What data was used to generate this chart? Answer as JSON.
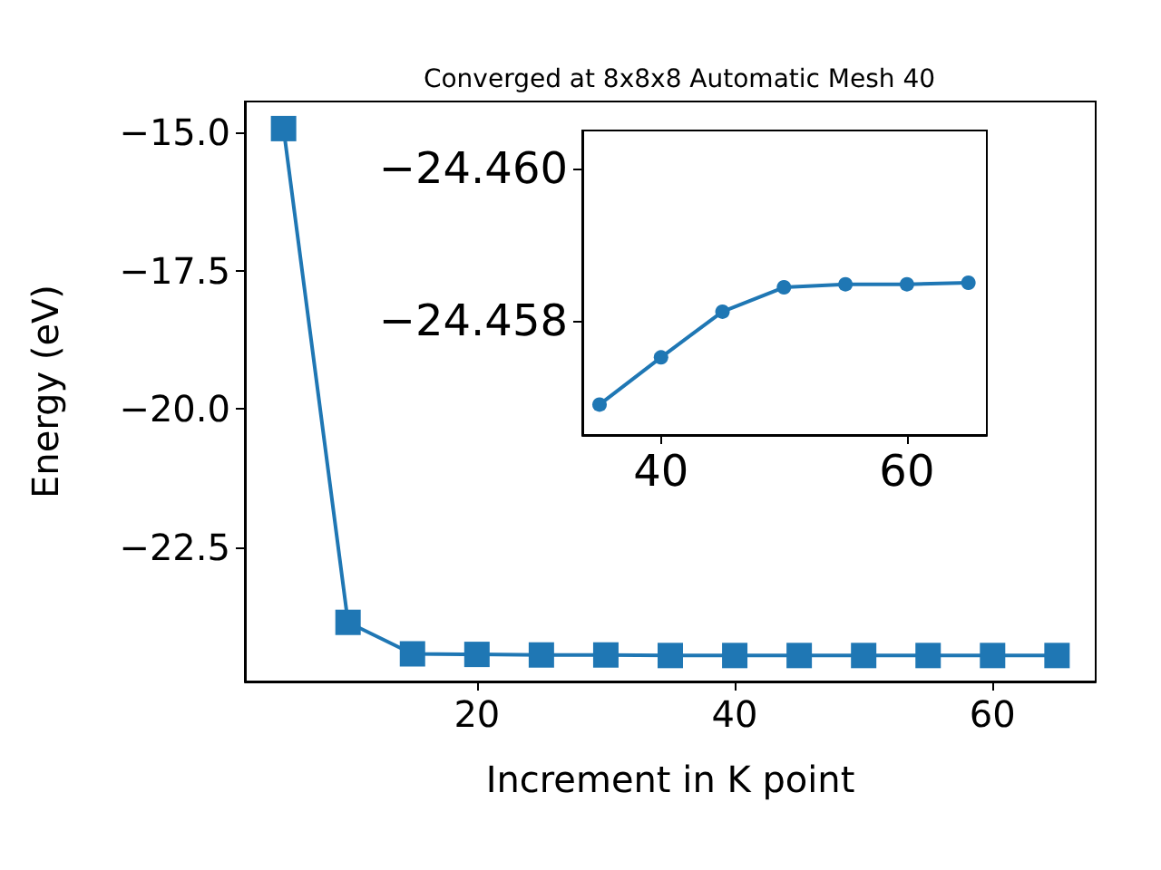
{
  "chart_data": [
    {
      "type": "line",
      "title": "Converged at 8x8x8 Automatic Mesh 40",
      "xlabel": "Increment in K point",
      "ylabel": "Energy (eV)",
      "x": [
        5,
        10,
        15,
        20,
        25,
        30,
        35,
        40,
        45,
        50,
        55,
        60,
        65
      ],
      "values": [
        -14.93,
        -23.86,
        -24.43,
        -24.44,
        -24.45,
        -24.45,
        -24.46,
        -24.46,
        -24.46,
        -24.46,
        -24.46,
        -24.46,
        -24.46
      ],
      "color": "#1f77b4",
      "marker": "square",
      "grid": false,
      "xlim": [
        2,
        68
      ],
      "xticks": [
        20,
        40,
        60
      ],
      "ylim": [
        -24.93,
        -14.44
      ],
      "yticks": [
        {
          "value": -22.5,
          "label": "−22.5"
        },
        {
          "value": -20.0,
          "label": "−20.0"
        },
        {
          "value": -17.5,
          "label": "−17.5"
        },
        {
          "value": -15.0,
          "label": "−15.0"
        }
      ]
    },
    {
      "type": "line",
      "x": [
        35,
        40,
        45,
        50,
        55,
        60,
        65
      ],
      "values": [
        -24.4569,
        -24.45752,
        -24.45812,
        -24.45844,
        -24.45848,
        -24.45848,
        -24.4585
      ],
      "color": "#1f77b4",
      "marker": "circle",
      "grid": false,
      "xlim": [
        33.6,
        66.5
      ],
      "xticks": [
        40,
        60
      ],
      "ylim": [
        -24.4565,
        -24.4605
      ],
      "yticks": [
        {
          "value": -24.458,
          "label": "−24.458"
        },
        {
          "value": -24.46,
          "label": "−24.460"
        }
      ]
    }
  ]
}
